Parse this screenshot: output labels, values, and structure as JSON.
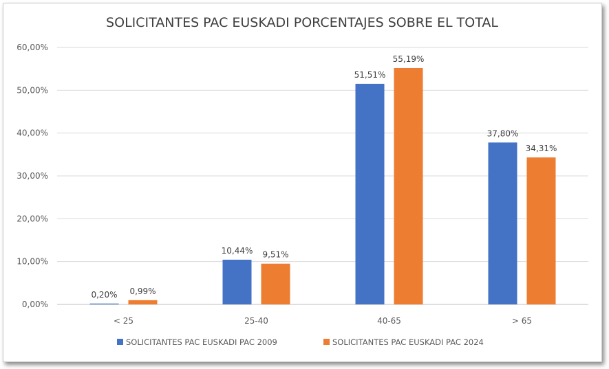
{
  "chart_data": {
    "type": "bar",
    "title": "SOLICITANTES PAC EUSKADI PORCENTAJES SOBRE EL TOTAL",
    "categories": [
      "< 25",
      "25-40",
      "40-65",
      "> 65"
    ],
    "series": [
      {
        "name": "SOLICITANTES PAC EUSKADI PAC 2009",
        "color": "#4472c4",
        "values": [
          0.2,
          10.44,
          51.51,
          37.8
        ],
        "labels": [
          "0,20%",
          "10,44%",
          "51,51%",
          "37,80%"
        ]
      },
      {
        "name": "SOLICITANTES PAC EUSKADI PAC 2024",
        "color": "#ed7d31",
        "values": [
          0.99,
          9.51,
          55.19,
          34.31
        ],
        "labels": [
          "0,99%",
          "9,51%",
          "55,19%",
          "34,31%"
        ]
      }
    ],
    "ylim": [
      0,
      60
    ],
    "yticks": [
      0,
      10,
      20,
      30,
      40,
      50,
      60
    ],
    "ytick_labels": [
      "0,00%",
      "10,00%",
      "20,00%",
      "30,00%",
      "40,00%",
      "50,00%",
      "60,00%"
    ],
    "xlabel": "",
    "ylabel": "",
    "grid": true,
    "legend_position": "bottom"
  }
}
